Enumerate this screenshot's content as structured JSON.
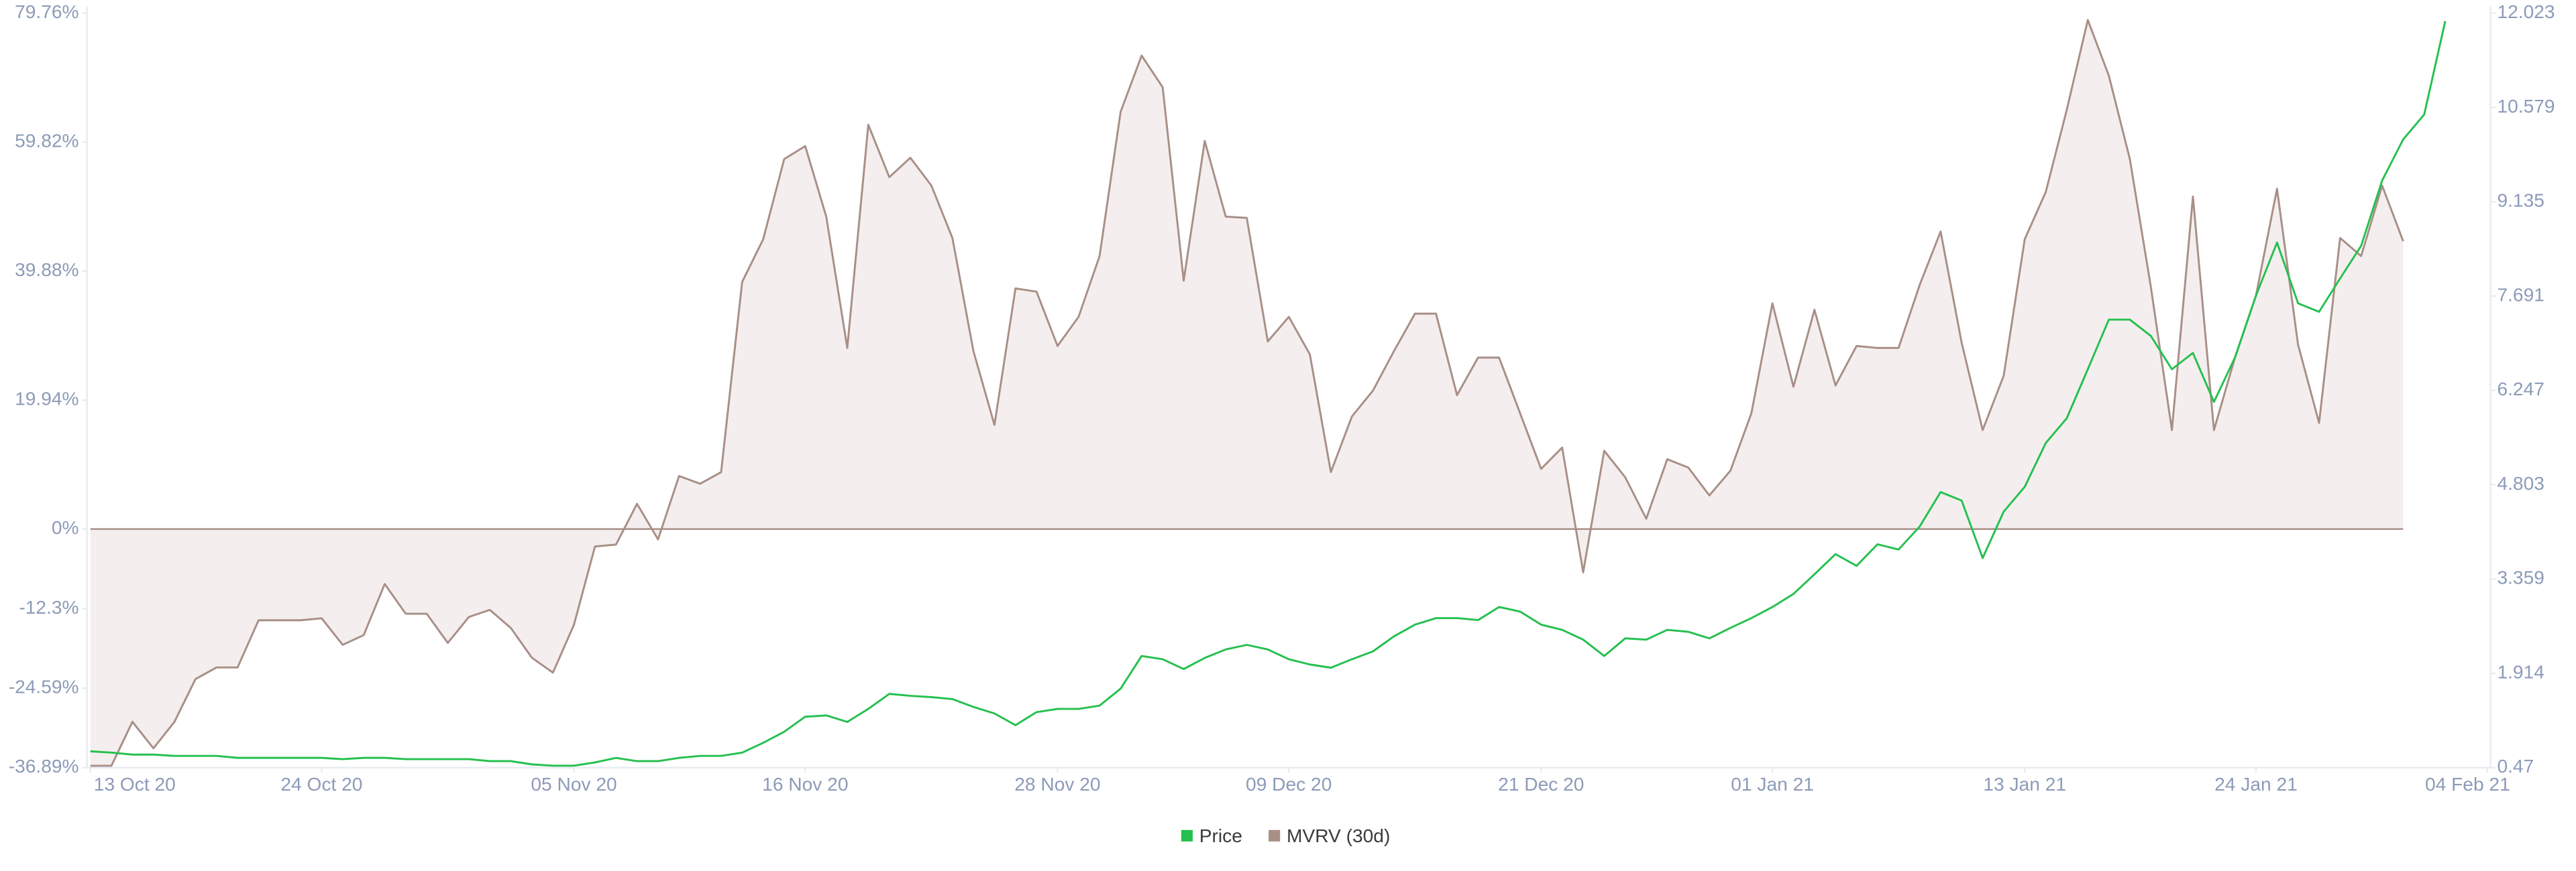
{
  "chart_data": {
    "type": "line",
    "categories": [
      "13 Oct 20",
      null,
      null,
      null,
      null,
      null,
      null,
      null,
      null,
      null,
      null,
      "24 Oct 20",
      null,
      null,
      null,
      null,
      null,
      null,
      null,
      null,
      null,
      null,
      null,
      "05 Nov 20",
      null,
      null,
      null,
      null,
      null,
      null,
      null,
      null,
      null,
      null,
      "16 Nov 20",
      null,
      null,
      null,
      null,
      null,
      null,
      null,
      null,
      null,
      null,
      null,
      "28 Nov 20",
      null,
      null,
      null,
      null,
      null,
      null,
      null,
      null,
      null,
      null,
      "09 Dec 20",
      null,
      null,
      null,
      null,
      null,
      null,
      null,
      null,
      null,
      null,
      null,
      "21 Dec 20",
      null,
      null,
      null,
      null,
      null,
      null,
      null,
      null,
      null,
      null,
      "01 Jan 21",
      null,
      null,
      null,
      null,
      null,
      null,
      null,
      null,
      null,
      null,
      null,
      "13 Jan 21",
      null,
      null,
      null,
      null,
      null,
      null,
      null,
      null,
      null,
      null,
      "24 Jan 21",
      null,
      null,
      null,
      null,
      null,
      null,
      null,
      null,
      null,
      null,
      "04 Feb 21"
    ],
    "series": [
      {
        "name": "Price",
        "color": "#25c04f",
        "axis": "y2",
        "values": [
          0.72,
          0.7,
          0.67,
          0.67,
          0.65,
          0.65,
          0.65,
          0.62,
          0.62,
          0.62,
          0.62,
          0.62,
          0.6,
          0.62,
          0.62,
          0.6,
          0.6,
          0.6,
          0.6,
          0.57,
          0.57,
          0.52,
          0.5,
          0.5,
          0.55,
          0.62,
          0.57,
          0.57,
          0.62,
          0.65,
          0.65,
          0.7,
          0.85,
          1.02,
          1.25,
          1.27,
          1.17,
          1.37,
          1.6,
          1.57,
          1.55,
          1.52,
          1.4,
          1.3,
          1.12,
          1.32,
          1.37,
          1.37,
          1.42,
          1.68,
          2.18,
          2.13,
          1.98,
          2.15,
          2.28,
          2.35,
          2.28,
          2.13,
          2.05,
          2.0,
          2.13,
          2.25,
          2.48,
          2.66,
          2.76,
          2.76,
          2.73,
          2.93,
          2.86,
          2.66,
          2.58,
          2.43,
          2.18,
          2.45,
          2.43,
          2.58,
          2.55,
          2.45,
          2.61,
          2.76,
          2.93,
          3.13,
          3.43,
          3.74,
          3.56,
          3.89,
          3.81,
          4.16,
          4.69,
          4.56,
          3.68,
          4.39,
          4.77,
          5.44,
          5.82,
          6.57,
          7.33,
          7.33,
          7.08,
          6.57,
          6.82,
          6.07,
          6.75,
          7.7,
          8.51,
          7.58,
          7.45,
          7.96,
          8.46,
          9.46,
          10.09,
          10.47,
          11.9,
          null,
          null
        ]
      },
      {
        "name": "MVRV (30d)",
        "color": "#a88f87",
        "fill": "#f4efee",
        "axis": "y",
        "values": [
          -36.6,
          -36.6,
          -29.8,
          -33.9,
          -29.8,
          -23.2,
          -21.4,
          -21.4,
          -14.1,
          -14.1,
          -14.1,
          -13.8,
          -17.9,
          -16.4,
          -8.5,
          -13.1,
          -13.1,
          -17.6,
          -13.6,
          -12.5,
          -15.3,
          -19.9,
          -22.2,
          -14.8,
          -2.7,
          -2.4,
          3.9,
          -1.6,
          8.2,
          7.0,
          8.8,
          38.2,
          44.8,
          57.2,
          59.2,
          48.3,
          28.0,
          62.5,
          54.4,
          57.4,
          53.1,
          45.0,
          27.5,
          16.1,
          37.2,
          36.7,
          28.3,
          32.8,
          42.2,
          64.5,
          73.2,
          68.3,
          38.4,
          60.0,
          48.3,
          48.1,
          29.0,
          32.8,
          27.0,
          8.8,
          17.4,
          21.4,
          27.5,
          33.3,
          33.3,
          20.7,
          26.5,
          26.5,
          17.9,
          9.3,
          12.6,
          -6.7,
          12.1,
          8.0,
          1.6,
          10.8,
          9.5,
          5.2,
          9.0,
          17.9,
          34.9,
          22.0,
          33.9,
          22.2,
          28.3,
          28.0,
          28.0,
          37.7,
          46.0,
          28.8,
          15.3,
          23.7,
          44.8,
          52.1,
          64.8,
          78.7,
          70.1,
          57.2,
          37.4,
          15.3,
          51.4,
          15.3,
          26.5,
          36.1,
          52.6,
          28.5,
          16.4,
          45.0,
          42.2,
          53.1,
          44.5,
          null,
          null,
          null,
          null
        ]
      }
    ],
    "ylim": [
      -36.89,
      79.76
    ],
    "yticks": [
      {
        "value": 79.76,
        "label": "79.76%"
      },
      {
        "value": 59.82,
        "label": "59.82%"
      },
      {
        "value": 39.88,
        "label": "39.88%"
      },
      {
        "value": 19.94,
        "label": "19.94%"
      },
      {
        "value": 0,
        "label": "0%"
      },
      {
        "value": -12.3,
        "label": "-12.3%"
      },
      {
        "value": -24.59,
        "label": "-24.59%"
      },
      {
        "value": -36.89,
        "label": "-36.89%"
      }
    ],
    "y2lim": [
      0.47,
      12.023
    ],
    "y2ticks": [
      12.023,
      10.579,
      9.135,
      7.691,
      6.247,
      4.803,
      3.359,
      1.914,
      0.47
    ],
    "grid": false,
    "legend": "bottom"
  }
}
